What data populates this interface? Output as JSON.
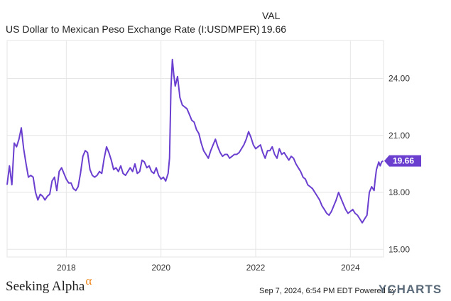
{
  "header": {
    "column_label": "VAL",
    "series_label": "US Dollar to Mexican Peso Exchange Rate (I:USDMPER)",
    "current_value": "19.66"
  },
  "footer": {
    "logo_text": "Seeking Alpha",
    "logo_symbol": "α",
    "timestamp": "Sep 7, 2024, 6:54 PM EDT",
    "powered_by": "Powered by",
    "brand": "YCHARTS"
  },
  "colors": {
    "line": "#6a3fd0",
    "grid": "#e6e6e6",
    "axis_text": "#333333",
    "brand_alpha": "#f08a24"
  },
  "chart_data": {
    "type": "line",
    "title": "",
    "xlabel": "",
    "ylabel": "",
    "xlim": [
      2016.75,
      2024.7
    ],
    "ylim": [
      14.6,
      26.0
    ],
    "x_ticks": [
      2018,
      2020,
      2022,
      2024
    ],
    "y_ticks": [
      15,
      18,
      21,
      24
    ],
    "y_tick_labels": [
      "15.00",
      "18.00",
      "21.00",
      "24.00"
    ],
    "grid": true,
    "y_axis_side": "right",
    "last_value_label": "19.66",
    "series": [
      {
        "values": [
          [
            2016.75,
            18.4
          ],
          [
            2016.8,
            19.4
          ],
          [
            2016.85,
            18.4
          ],
          [
            2016.9,
            20.6
          ],
          [
            2016.95,
            20.4
          ],
          [
            2017.0,
            20.8
          ],
          [
            2017.05,
            21.4
          ],
          [
            2017.1,
            20.3
          ],
          [
            2017.15,
            19.5
          ],
          [
            2017.2,
            18.8
          ],
          [
            2017.25,
            18.9
          ],
          [
            2017.3,
            18.8
          ],
          [
            2017.35,
            18.0
          ],
          [
            2017.4,
            17.6
          ],
          [
            2017.45,
            17.9
          ],
          [
            2017.5,
            17.8
          ],
          [
            2017.55,
            17.6
          ],
          [
            2017.6,
            17.8
          ],
          [
            2017.65,
            17.9
          ],
          [
            2017.7,
            18.6
          ],
          [
            2017.75,
            18.8
          ],
          [
            2017.8,
            18.1
          ],
          [
            2017.85,
            19.1
          ],
          [
            2017.9,
            19.3
          ],
          [
            2017.95,
            19.0
          ],
          [
            2018.0,
            18.7
          ],
          [
            2018.05,
            18.5
          ],
          [
            2018.1,
            18.5
          ],
          [
            2018.15,
            18.2
          ],
          [
            2018.2,
            18.1
          ],
          [
            2018.25,
            18.3
          ],
          [
            2018.3,
            19.0
          ],
          [
            2018.35,
            19.9
          ],
          [
            2018.4,
            20.2
          ],
          [
            2018.45,
            20.1
          ],
          [
            2018.5,
            19.2
          ],
          [
            2018.55,
            18.9
          ],
          [
            2018.6,
            18.8
          ],
          [
            2018.65,
            18.9
          ],
          [
            2018.7,
            19.1
          ],
          [
            2018.75,
            19.0
          ],
          [
            2018.8,
            19.8
          ],
          [
            2018.85,
            20.4
          ],
          [
            2018.9,
            20.1
          ],
          [
            2018.95,
            19.7
          ],
          [
            2019.0,
            19.2
          ],
          [
            2019.05,
            19.3
          ],
          [
            2019.1,
            19.1
          ],
          [
            2019.15,
            19.4
          ],
          [
            2019.2,
            19.0
          ],
          [
            2019.25,
            18.9
          ],
          [
            2019.3,
            19.1
          ],
          [
            2019.35,
            19.3
          ],
          [
            2019.4,
            19.1
          ],
          [
            2019.45,
            19.5
          ],
          [
            2019.5,
            19.0
          ],
          [
            2019.55,
            19.1
          ],
          [
            2019.6,
            19.7
          ],
          [
            2019.65,
            19.6
          ],
          [
            2019.7,
            19.3
          ],
          [
            2019.75,
            19.4
          ],
          [
            2019.8,
            19.1
          ],
          [
            2019.85,
            19.0
          ],
          [
            2019.9,
            19.3
          ],
          [
            2019.95,
            18.9
          ],
          [
            2020.0,
            18.7
          ],
          [
            2020.05,
            18.8
          ],
          [
            2020.1,
            18.6
          ],
          [
            2020.15,
            19.0
          ],
          [
            2020.18,
            19.8
          ],
          [
            2020.21,
            23.5
          ],
          [
            2020.24,
            25.0
          ],
          [
            2020.27,
            24.2
          ],
          [
            2020.3,
            23.6
          ],
          [
            2020.35,
            24.1
          ],
          [
            2020.4,
            23.0
          ],
          [
            2020.45,
            22.6
          ],
          [
            2020.5,
            22.5
          ],
          [
            2020.55,
            22.4
          ],
          [
            2020.6,
            22.1
          ],
          [
            2020.65,
            21.8
          ],
          [
            2020.7,
            21.7
          ],
          [
            2020.75,
            21.3
          ],
          [
            2020.8,
            21.1
          ],
          [
            2020.85,
            20.6
          ],
          [
            2020.9,
            20.2
          ],
          [
            2020.95,
            20.0
          ],
          [
            2021.0,
            19.8
          ],
          [
            2021.05,
            20.2
          ],
          [
            2021.1,
            20.5
          ],
          [
            2021.15,
            20.8
          ],
          [
            2021.2,
            20.4
          ],
          [
            2021.25,
            20.1
          ],
          [
            2021.3,
            19.9
          ],
          [
            2021.35,
            20.0
          ],
          [
            2021.4,
            20.0
          ],
          [
            2021.45,
            19.8
          ],
          [
            2021.5,
            19.9
          ],
          [
            2021.55,
            20.0
          ],
          [
            2021.6,
            20.0
          ],
          [
            2021.65,
            20.1
          ],
          [
            2021.7,
            20.3
          ],
          [
            2021.75,
            20.5
          ],
          [
            2021.8,
            20.8
          ],
          [
            2021.85,
            21.2
          ],
          [
            2021.9,
            20.9
          ],
          [
            2021.95,
            20.5
          ],
          [
            2022.0,
            20.3
          ],
          [
            2022.05,
            20.4
          ],
          [
            2022.1,
            20.5
          ],
          [
            2022.15,
            20.1
          ],
          [
            2022.2,
            19.8
          ],
          [
            2022.25,
            20.2
          ],
          [
            2022.3,
            20.2
          ],
          [
            2022.35,
            20.4
          ],
          [
            2022.4,
            20.0
          ],
          [
            2022.45,
            19.8
          ],
          [
            2022.5,
            20.3
          ],
          [
            2022.55,
            20.0
          ],
          [
            2022.6,
            20.1
          ],
          [
            2022.65,
            19.9
          ],
          [
            2022.7,
            19.7
          ],
          [
            2022.75,
            19.9
          ],
          [
            2022.8,
            19.8
          ],
          [
            2022.85,
            19.5
          ],
          [
            2022.9,
            19.3
          ],
          [
            2022.95,
            19.1
          ],
          [
            2023.0,
            18.8
          ],
          [
            2023.05,
            18.7
          ],
          [
            2023.1,
            18.4
          ],
          [
            2023.15,
            18.3
          ],
          [
            2023.2,
            18.2
          ],
          [
            2023.25,
            18.0
          ],
          [
            2023.3,
            17.8
          ],
          [
            2023.35,
            17.6
          ],
          [
            2023.4,
            17.3
          ],
          [
            2023.45,
            17.1
          ],
          [
            2023.5,
            16.9
          ],
          [
            2023.55,
            16.8
          ],
          [
            2023.6,
            17.0
          ],
          [
            2023.65,
            17.3
          ],
          [
            2023.7,
            17.6
          ],
          [
            2023.75,
            18.0
          ],
          [
            2023.8,
            17.7
          ],
          [
            2023.85,
            17.4
          ],
          [
            2023.9,
            17.1
          ],
          [
            2023.95,
            16.9
          ],
          [
            2024.0,
            17.0
          ],
          [
            2024.05,
            17.1
          ],
          [
            2024.1,
            16.9
          ],
          [
            2024.15,
            16.8
          ],
          [
            2024.2,
            16.6
          ],
          [
            2024.25,
            16.4
          ],
          [
            2024.3,
            16.6
          ],
          [
            2024.35,
            16.8
          ],
          [
            2024.4,
            18.0
          ],
          [
            2024.45,
            18.3
          ],
          [
            2024.5,
            18.1
          ],
          [
            2024.52,
            18.6
          ],
          [
            2024.55,
            19.2
          ],
          [
            2024.6,
            19.6
          ],
          [
            2024.63,
            19.4
          ],
          [
            2024.66,
            19.6
          ],
          [
            2024.69,
            19.66
          ]
        ]
      }
    ]
  }
}
